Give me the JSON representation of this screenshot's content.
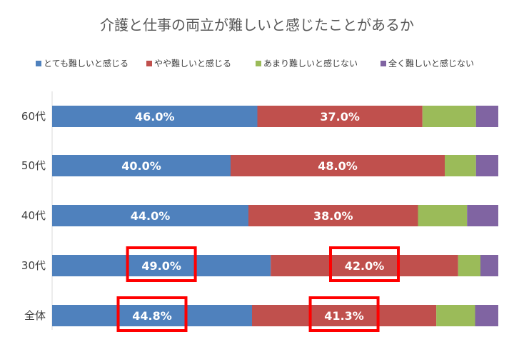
{
  "chart_data": {
    "type": "bar",
    "orientation": "horizontal",
    "stacked": "percent",
    "title": "介護と仕事の両立が難しいと感じたことがあるか",
    "legend_position": "top",
    "categories": [
      "60代",
      "50代",
      "40代",
      "30代",
      "全体"
    ],
    "series": [
      {
        "name": "とても難しいと感じる",
        "color": "#4F81BD",
        "values": [
          46.0,
          40.0,
          44.0,
          49.0,
          44.8
        ],
        "labels": [
          "46.0%",
          "40.0%",
          "44.0%",
          "49.0%",
          "44.8%"
        ]
      },
      {
        "name": "やや難しいと感じる",
        "color": "#C0504D",
        "values": [
          37.0,
          48.0,
          38.0,
          42.0,
          41.3
        ],
        "labels": [
          "37.0%",
          "48.0%",
          "38.0%",
          "42.0%",
          "41.3%"
        ]
      },
      {
        "name": "あまり難しいと感じない",
        "color": "#9BBB59",
        "values": [
          12.0,
          7.0,
          11.0,
          5.0,
          8.7
        ],
        "labels": [
          "",
          "",
          "",
          "",
          ""
        ]
      },
      {
        "name": "全く難しいと感じない",
        "color": "#8064A2",
        "values": [
          5.0,
          5.0,
          7.0,
          4.0,
          5.2
        ],
        "labels": [
          "",
          "",
          "",
          "",
          ""
        ]
      }
    ],
    "highlight_color": "#FF0000",
    "highlights": [
      {
        "category": "30代",
        "series": 0
      },
      {
        "category": "30代",
        "series": 1
      },
      {
        "category": "全体",
        "series": 0
      },
      {
        "category": "全体",
        "series": 1
      }
    ]
  }
}
